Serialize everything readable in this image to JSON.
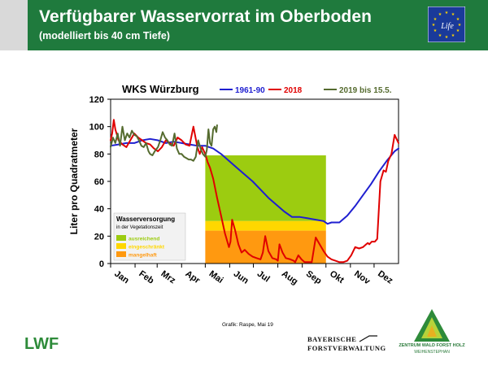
{
  "header": {
    "title": "Verfügbarer Wasservorrat im Oberboden",
    "subtitle": "(modelliert bis 40 cm Tiefe)"
  },
  "chart_data": {
    "type": "line",
    "title": "WKS Würzburg",
    "ylabel": "Liter pro Quadratmeter",
    "xlabel": "",
    "ylim": [
      0,
      120
    ],
    "xlim": [
      0,
      365
    ],
    "yticks": [
      0,
      20,
      40,
      60,
      80,
      100,
      120
    ],
    "month_labels": [
      "Jan",
      "Feb",
      "Mrz",
      "Apr",
      "Mai",
      "Jun",
      "Jul",
      "Aug",
      "Sep",
      "Okt",
      "Nov",
      "Dez"
    ],
    "month_positions": [
      0,
      31,
      59,
      90,
      120,
      151,
      181,
      212,
      243,
      273,
      304,
      334
    ],
    "grid": false,
    "series": [
      {
        "name": "1961-90",
        "color": "#1f1fd0",
        "x": [
          0,
          10,
          20,
          30,
          40,
          50,
          60,
          70,
          80,
          90,
          100,
          110,
          120,
          130,
          140,
          150,
          160,
          170,
          180,
          190,
          200,
          210,
          220,
          230,
          240,
          250,
          260,
          270,
          275,
          280,
          290,
          300,
          310,
          320,
          330,
          340,
          350,
          360,
          365
        ],
        "y": [
          86,
          87,
          88,
          88,
          90,
          91,
          90,
          88,
          89,
          88,
          87,
          86,
          86,
          84,
          80,
          75,
          70,
          65,
          60,
          54,
          48,
          43,
          38,
          34,
          34,
          33,
          32,
          31,
          29,
          30,
          30,
          35,
          42,
          50,
          58,
          67,
          75,
          82,
          84
        ]
      },
      {
        "name": "2018",
        "color": "#e00000",
        "x": [
          0,
          2,
          4,
          6,
          10,
          15,
          20,
          25,
          30,
          35,
          40,
          45,
          50,
          55,
          60,
          65,
          70,
          75,
          80,
          85,
          90,
          95,
          100,
          105,
          110,
          113,
          116,
          120,
          123,
          126,
          130,
          135,
          140,
          145,
          150,
          152,
          154,
          158,
          162,
          166,
          170,
          175,
          180,
          185,
          190,
          193,
          196,
          200,
          205,
          210,
          212,
          214,
          218,
          222,
          228,
          232,
          234,
          238,
          242,
          244,
          246,
          250,
          255,
          260,
          265,
          270,
          275,
          280,
          285,
          290,
          295,
          300,
          305,
          310,
          315,
          320,
          324,
          326,
          328,
          331,
          335,
          338,
          342,
          346,
          349,
          352,
          356,
          360,
          365
        ],
        "y": [
          90,
          95,
          105,
          98,
          90,
          87,
          85,
          90,
          95,
          92,
          90,
          88,
          87,
          84,
          82,
          85,
          90,
          88,
          86,
          92,
          90,
          87,
          86,
          100,
          85,
          80,
          85,
          80,
          74,
          70,
          62,
          48,
          35,
          22,
          12,
          16,
          32,
          24,
          14,
          8,
          10,
          7,
          5,
          4,
          3,
          8,
          20,
          9,
          4,
          3,
          2,
          14,
          8,
          4,
          3,
          2,
          1,
          6,
          3,
          2,
          1,
          1,
          1,
          19,
          14,
          9,
          5,
          3,
          2,
          1,
          1,
          2,
          6,
          12,
          11,
          12,
          14,
          15,
          14,
          16,
          16,
          18,
          60,
          68,
          67,
          75,
          80,
          94,
          88
        ]
      },
      {
        "name": "2019 bis 15.5.",
        "color": "#556b2f",
        "x": [
          0,
          3,
          6,
          9,
          12,
          15,
          18,
          21,
          24,
          27,
          30,
          33,
          36,
          39,
          42,
          45,
          48,
          50,
          53,
          56,
          60,
          63,
          66,
          69,
          72,
          75,
          78,
          81,
          84,
          87,
          90,
          93,
          96,
          99,
          102,
          105,
          108,
          111,
          114,
          117,
          120,
          122,
          124,
          126,
          128,
          130,
          132,
          134,
          135
        ],
        "y": [
          85,
          92,
          88,
          95,
          86,
          100,
          90,
          95,
          92,
          97,
          94,
          93,
          90,
          86,
          85,
          88,
          82,
          80,
          79,
          82,
          85,
          90,
          96,
          92,
          90,
          87,
          86,
          95,
          84,
          80,
          80,
          78,
          77,
          76,
          76,
          75,
          78,
          90,
          84,
          80,
          78,
          83,
          98,
          88,
          86,
          98,
          100,
          96,
          101
        ]
      }
    ],
    "legend_box": {
      "title": "Wasserversorgung",
      "subtitle": "in der Vegetationszeit",
      "items": [
        {
          "label": "ausreichend",
          "color": "#9ccc10"
        },
        {
          "label": "eingeschränkt",
          "color": "#ffd700"
        },
        {
          "label": "mangelhaft",
          "color": "#ff9910"
        }
      ]
    },
    "vegetation_bands": {
      "start": 120,
      "end": 273,
      "ranges": [
        {
          "from": 31,
          "to": 79,
          "color": "#9ccc10"
        },
        {
          "from": 24,
          "to": 31,
          "color": "#ffd700"
        },
        {
          "from": 0,
          "to": 24,
          "color": "#ff9910"
        }
      ]
    }
  },
  "credit": "Grafik: Raspe, Mai 19",
  "logos": {
    "eu_text": "Life",
    "lwf": "LWF",
    "bayern_line1": "BAYERISCHE",
    "bayern_line2": "FORSTVERWALTUNG",
    "zwfh_name": "ZENTRUM WALD FORST HOLZ",
    "zwfh_place": "WEIHENSTEPHAN"
  }
}
